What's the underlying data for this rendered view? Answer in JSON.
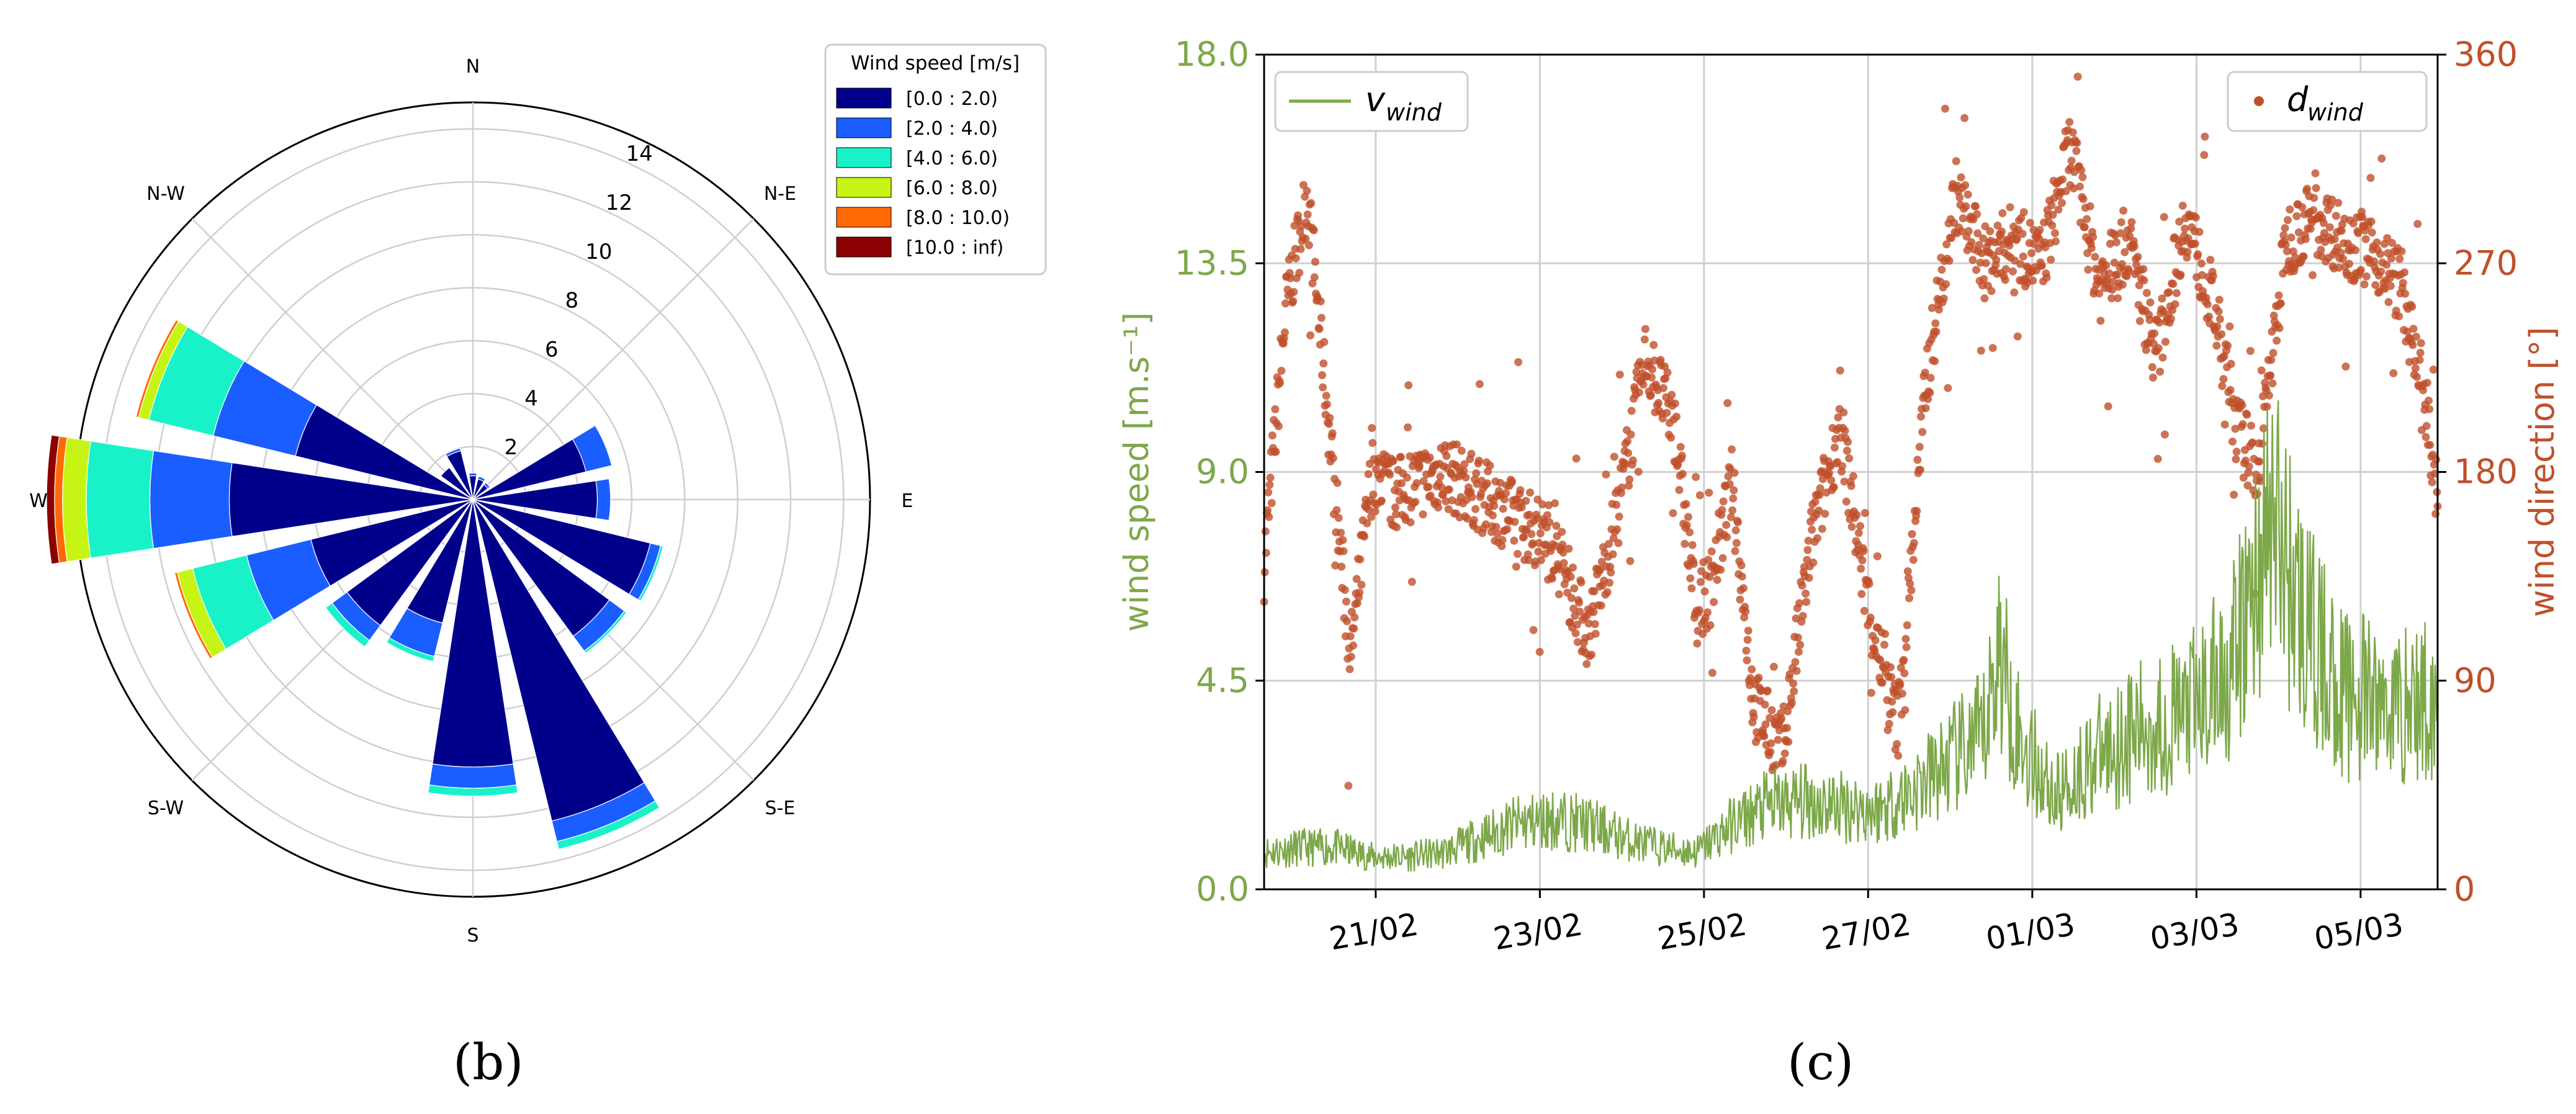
{
  "chart_data": [
    {
      "type": "windrose",
      "panel": "(b)",
      "directions": [
        "N",
        "N-E",
        "E",
        "S-E",
        "S",
        "S-W",
        "W",
        "N-W"
      ],
      "radial_ticks": [
        2,
        4,
        6,
        8,
        10,
        12,
        14
      ],
      "rmax": 15,
      "legend": {
        "title": "Wind speed [m/s]",
        "entries": [
          "[0.0 : 2.0)",
          "[2.0 : 4.0)",
          "[4.0 : 6.0)",
          "[6.0 : 8.0)",
          "[8.0 : 10.0)",
          "[10.0 : inf)"
        ],
        "colors": [
          "#00008b",
          "#1a5eff",
          "#19f2c8",
          "#c6f515",
          "#ff6a05",
          "#8b0000"
        ],
        "placement": "top-right"
      },
      "sectors": [
        {
          "bearing": 0,
          "cum": [
            0.9,
            1.0,
            1.0,
            1.0,
            1.0,
            1.0
          ]
        },
        {
          "bearing": 22.5,
          "cum": [
            0.8,
            0.9,
            0.9,
            0.9,
            0.9,
            0.9
          ]
        },
        {
          "bearing": 45,
          "cum": [
            0.7,
            0.8,
            0.8,
            0.8,
            0.8,
            0.8
          ]
        },
        {
          "bearing": 67.5,
          "cum": [
            4.4,
            5.4,
            5.4,
            5.4,
            5.4,
            5.4
          ]
        },
        {
          "bearing": 90,
          "cum": [
            4.7,
            5.2,
            5.2,
            5.2,
            5.2,
            5.2
          ]
        },
        {
          "bearing": 112.5,
          "cum": [
            6.9,
            7.3,
            7.4,
            7.4,
            7.4,
            7.4
          ]
        },
        {
          "bearing": 135,
          "cum": [
            6.4,
            7.1,
            7.2,
            7.2,
            7.2,
            7.2
          ]
        },
        {
          "bearing": 157.5,
          "cum": [
            12.5,
            13.3,
            13.6,
            13.6,
            13.6,
            13.6
          ]
        },
        {
          "bearing": 180,
          "cum": [
            10.1,
            10.9,
            11.2,
            11.2,
            11.2,
            11.2
          ]
        },
        {
          "bearing": 202.5,
          "cum": [
            4.8,
            6.1,
            6.3,
            6.3,
            6.3,
            6.3
          ]
        },
        {
          "bearing": 225,
          "cum": [
            5.9,
            6.6,
            6.9,
            6.9,
            6.9,
            6.9
          ]
        },
        {
          "bearing": 247.5,
          "cum": [
            6.3,
            8.8,
            10.9,
            11.5,
            11.6,
            11.6
          ]
        },
        {
          "bearing": 270,
          "cum": [
            9.2,
            12.2,
            14.6,
            15.5,
            15.8,
            16.1
          ]
        },
        {
          "bearing": 292.5,
          "cum": [
            6.9,
            10.1,
            12.6,
            13.0,
            13.1,
            13.1
          ]
        },
        {
          "bearing": 315,
          "cum": [
            1.5,
            1.5,
            1.5,
            1.5,
            1.5,
            1.5
          ]
        },
        {
          "bearing": 337.5,
          "cum": [
            1.9,
            2.0,
            2.0,
            2.0,
            2.0,
            2.0
          ]
        }
      ]
    },
    {
      "type": "line",
      "panel": "(c)",
      "xlabel": "",
      "ylabel_left": "wind speed [m.s⁻¹]",
      "ylabel_right": "wind direction [°]",
      "ylim_left": [
        0,
        18
      ],
      "ylim_right": [
        0,
        360
      ],
      "xlim_days": [
        0,
        16.3
      ],
      "yticks_left": [
        "0.0",
        "4.5",
        "9.0",
        "13.5",
        "18.0"
      ],
      "yticks_right": [
        "0",
        "90",
        "180",
        "270",
        "360"
      ],
      "xticks": [
        {
          "label": "21/02",
          "day": 1.55
        },
        {
          "label": "23/02",
          "day": 3.83
        },
        {
          "label": "25/02",
          "day": 6.11
        },
        {
          "label": "27/02",
          "day": 8.39
        },
        {
          "label": "01/03",
          "day": 10.67
        },
        {
          "label": "03/03",
          "day": 12.95
        },
        {
          "label": "05/03",
          "day": 15.23
        }
      ],
      "series": [
        {
          "name": "v_wind",
          "legend_main": "v",
          "legend_sub": "wind",
          "color": "#7da84a",
          "style": "line",
          "x": [
            0,
            0.5,
            1.0,
            1.5,
            2.0,
            2.5,
            3.0,
            3.5,
            4.0,
            4.5,
            5.0,
            5.5,
            6.0,
            6.5,
            7.0,
            7.5,
            8.0,
            8.5,
            9.0,
            9.5,
            10.0,
            10.2,
            10.5,
            11.0,
            11.5,
            12.0,
            12.5,
            13.0,
            13.5,
            14.0,
            14.5,
            15.0,
            15.5,
            16.0,
            16.3
          ],
          "y": [
            0.8,
            0.9,
            0.9,
            0.7,
            0.7,
            0.8,
            1.1,
            1.4,
            1.5,
            1.4,
            1.1,
            0.9,
            0.8,
            1.4,
            1.8,
            1.9,
            1.8,
            1.7,
            2.1,
            2.7,
            3.3,
            5.2,
            3.2,
            2.0,
            2.8,
            3.3,
            3.6,
            4.0,
            5.0,
            8.0,
            5.5,
            4.2,
            4.0,
            4.0,
            4.1
          ]
        },
        {
          "name": "d_wind",
          "legend_main": "d",
          "legend_sub": "wind",
          "color": "#c0502a",
          "style": "points",
          "x": [
            0,
            0.3,
            0.6,
            0.9,
            1.2,
            1.5,
            1.8,
            2.1,
            2.5,
            3.0,
            3.5,
            4.0,
            4.5,
            4.9,
            5.3,
            5.7,
            6.0,
            6.2,
            6.5,
            6.8,
            7.2,
            7.6,
            8.0,
            8.4,
            8.8,
            9.2,
            9.6,
            10.0,
            10.4,
            10.8,
            11.2,
            11.6,
            12.0,
            12.4,
            12.8,
            13.2,
            13.5,
            13.8,
            14.2,
            14.6,
            15.0,
            15.4,
            15.8,
            16.1,
            16.3
          ],
          "y": [
            140,
            250,
            300,
            200,
            100,
            180,
            170,
            175,
            180,
            170,
            160,
            150,
            110,
            160,
            230,
            200,
            120,
            130,
            175,
            80,
            60,
            150,
            200,
            120,
            70,
            220,
            300,
            270,
            280,
            270,
            320,
            260,
            280,
            230,
            290,
            250,
            200,
            180,
            280,
            290,
            280,
            275,
            260,
            210,
            170
          ]
        }
      ]
    }
  ],
  "panel_labels": {
    "b": "(b)",
    "c": "(c)"
  }
}
